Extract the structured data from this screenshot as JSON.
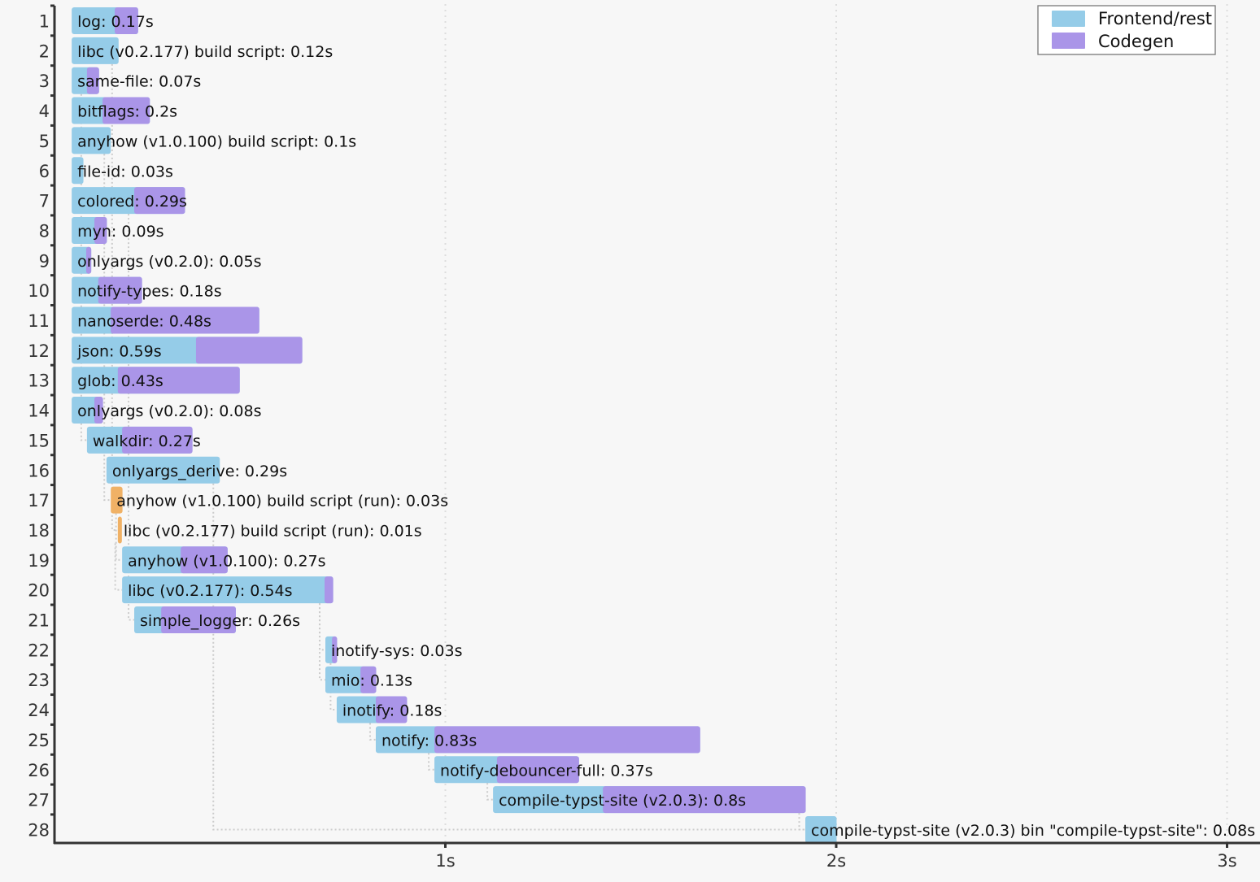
{
  "chart_data": {
    "type": "bar",
    "subtype": "gantt-timeline",
    "title": "",
    "xlabel": "",
    "ylabel": "",
    "xlim": [
      0,
      3.0
    ],
    "x_ticks": [
      "1s",
      "2s",
      "3s"
    ],
    "x_tick_values": [
      1,
      2,
      3
    ],
    "grid": "vertical dotted",
    "legend": {
      "placement": "top-right",
      "entries": [
        {
          "name": "Frontend/rest",
          "color": "#95cce8"
        },
        {
          "name": "Codegen",
          "color": "#aa95e8"
        }
      ]
    },
    "colors": {
      "frontend": "#95cce8",
      "codegen": "#aa95e8",
      "build_script_run": "#f0b165",
      "axis": "#333333",
      "grid": "#dddddd",
      "dependency_line": "#cccccc"
    },
    "units": [
      {
        "row": 1,
        "name": "log",
        "duration": 0.17,
        "start": 0.044,
        "codegen_start": 0.154,
        "label": "log: 0.17s"
      },
      {
        "row": 2,
        "name": "libc (v0.2.177) build script",
        "duration": 0.12,
        "start": 0.044,
        "codegen_start": null,
        "label": "libc (v0.2.177) build script: 0.12s"
      },
      {
        "row": 3,
        "name": "same-file",
        "duration": 0.07,
        "start": 0.044,
        "codegen_start": 0.083,
        "label": "same-file: 0.07s"
      },
      {
        "row": 4,
        "name": "bitflags",
        "duration": 0.2,
        "start": 0.044,
        "codegen_start": 0.123,
        "label": "bitflags: 0.2s"
      },
      {
        "row": 5,
        "name": "anyhow (v1.0.100) build script",
        "duration": 0.1,
        "start": 0.044,
        "codegen_start": null,
        "label": "anyhow (v1.0.100) build script: 0.1s"
      },
      {
        "row": 6,
        "name": "file-id",
        "duration": 0.03,
        "start": 0.044,
        "codegen_start": null,
        "label": "file-id: 0.03s"
      },
      {
        "row": 7,
        "name": "colored",
        "duration": 0.29,
        "start": 0.044,
        "codegen_start": 0.204,
        "label": "colored: 0.29s"
      },
      {
        "row": 8,
        "name": "myn",
        "duration": 0.09,
        "start": 0.044,
        "codegen_start": 0.102,
        "label": "myn: 0.09s"
      },
      {
        "row": 9,
        "name": "onlyargs (v0.2.0)",
        "duration": 0.05,
        "start": 0.044,
        "codegen_start": 0.081,
        "label": "onlyargs (v0.2.0): 0.05s"
      },
      {
        "row": 10,
        "name": "notify-types",
        "duration": 0.18,
        "start": 0.044,
        "codegen_start": 0.112,
        "label": "notify-types: 0.18s"
      },
      {
        "row": 11,
        "name": "nanoserde",
        "duration": 0.48,
        "start": 0.044,
        "codegen_start": 0.144,
        "label": "nanoserde: 0.48s"
      },
      {
        "row": 12,
        "name": "json",
        "duration": 0.59,
        "start": 0.044,
        "codegen_start": 0.362,
        "label": "json: 0.59s"
      },
      {
        "row": 13,
        "name": "glob",
        "duration": 0.43,
        "start": 0.044,
        "codegen_start": 0.162,
        "label": "glob: 0.43s"
      },
      {
        "row": 14,
        "name": "onlyargs (v0.2.0)",
        "duration": 0.08,
        "start": 0.044,
        "codegen_start": 0.102,
        "label": "onlyargs (v0.2.0): 0.08s"
      },
      {
        "row": 15,
        "name": "walkdir",
        "duration": 0.27,
        "start": 0.083,
        "codegen_start": 0.173,
        "label": "walkdir: 0.27s"
      },
      {
        "row": 16,
        "name": "onlyargs_derive",
        "duration": 0.29,
        "start": 0.133,
        "codegen_start": null,
        "label": "onlyargs_derive: 0.29s"
      },
      {
        "row": 17,
        "name": "anyhow (v1.0.100) build script (run)",
        "duration": 0.03,
        "start": 0.144,
        "codegen_start": null,
        "run": true,
        "label": "anyhow (v1.0.100) build script (run): 0.03s"
      },
      {
        "row": 18,
        "name": "libc (v0.2.177) build script (run)",
        "duration": 0.01,
        "start": 0.162,
        "codegen_start": null,
        "run": true,
        "label": "libc (v0.2.177) build script (run): 0.01s"
      },
      {
        "row": 19,
        "name": "anyhow (v1.0.100)",
        "duration": 0.27,
        "start": 0.173,
        "codegen_start": 0.323,
        "label": "anyhow (v1.0.100): 0.27s"
      },
      {
        "row": 20,
        "name": "libc (v0.2.177)",
        "duration": 0.54,
        "start": 0.173,
        "codegen_start": 0.691,
        "label": "libc (v0.2.177): 0.54s"
      },
      {
        "row": 21,
        "name": "simple_logger",
        "duration": 0.26,
        "start": 0.204,
        "codegen_start": 0.273,
        "label": "simple_logger: 0.26s"
      },
      {
        "row": 22,
        "name": "inotify-sys",
        "duration": 0.03,
        "start": 0.693,
        "codegen_start": 0.71,
        "label": "inotify-sys: 0.03s"
      },
      {
        "row": 23,
        "name": "mio",
        "duration": 0.13,
        "start": 0.693,
        "codegen_start": 0.783,
        "label": "mio: 0.13s"
      },
      {
        "row": 24,
        "name": "inotify",
        "duration": 0.18,
        "start": 0.722,
        "codegen_start": 0.822,
        "label": "inotify: 0.18s"
      },
      {
        "row": 25,
        "name": "notify",
        "duration": 0.83,
        "start": 0.822,
        "codegen_start": 0.972,
        "label": "notify: 0.83s"
      },
      {
        "row": 26,
        "name": "notify-debouncer-full",
        "duration": 0.37,
        "start": 0.972,
        "codegen_start": 1.132,
        "label": "notify-debouncer-full: 0.37s"
      },
      {
        "row": 27,
        "name": "compile-typst-site (v2.0.3)",
        "duration": 0.8,
        "start": 1.122,
        "codegen_start": 1.403,
        "label": "compile-typst-site (v2.0.3): 0.8s"
      },
      {
        "row": 28,
        "name": "compile-typst-site (v2.0.3) bin \"compile-typst-site\"",
        "duration": 0.08,
        "start": 1.921,
        "codegen_start": null,
        "label": "compile-typst-site (v2.0.3) bin \"compile-typst-site\": 0.08s"
      }
    ],
    "dependencies": [
      [
        2,
        18
      ],
      [
        5,
        17
      ],
      [
        17,
        19
      ],
      [
        18,
        20
      ],
      [
        3,
        15
      ],
      [
        7,
        21
      ],
      [
        20,
        22
      ],
      [
        20,
        23
      ],
      [
        22,
        24
      ],
      [
        24,
        25
      ],
      [
        25,
        26
      ],
      [
        26,
        27
      ],
      [
        27,
        28
      ],
      [
        16,
        28
      ]
    ]
  }
}
